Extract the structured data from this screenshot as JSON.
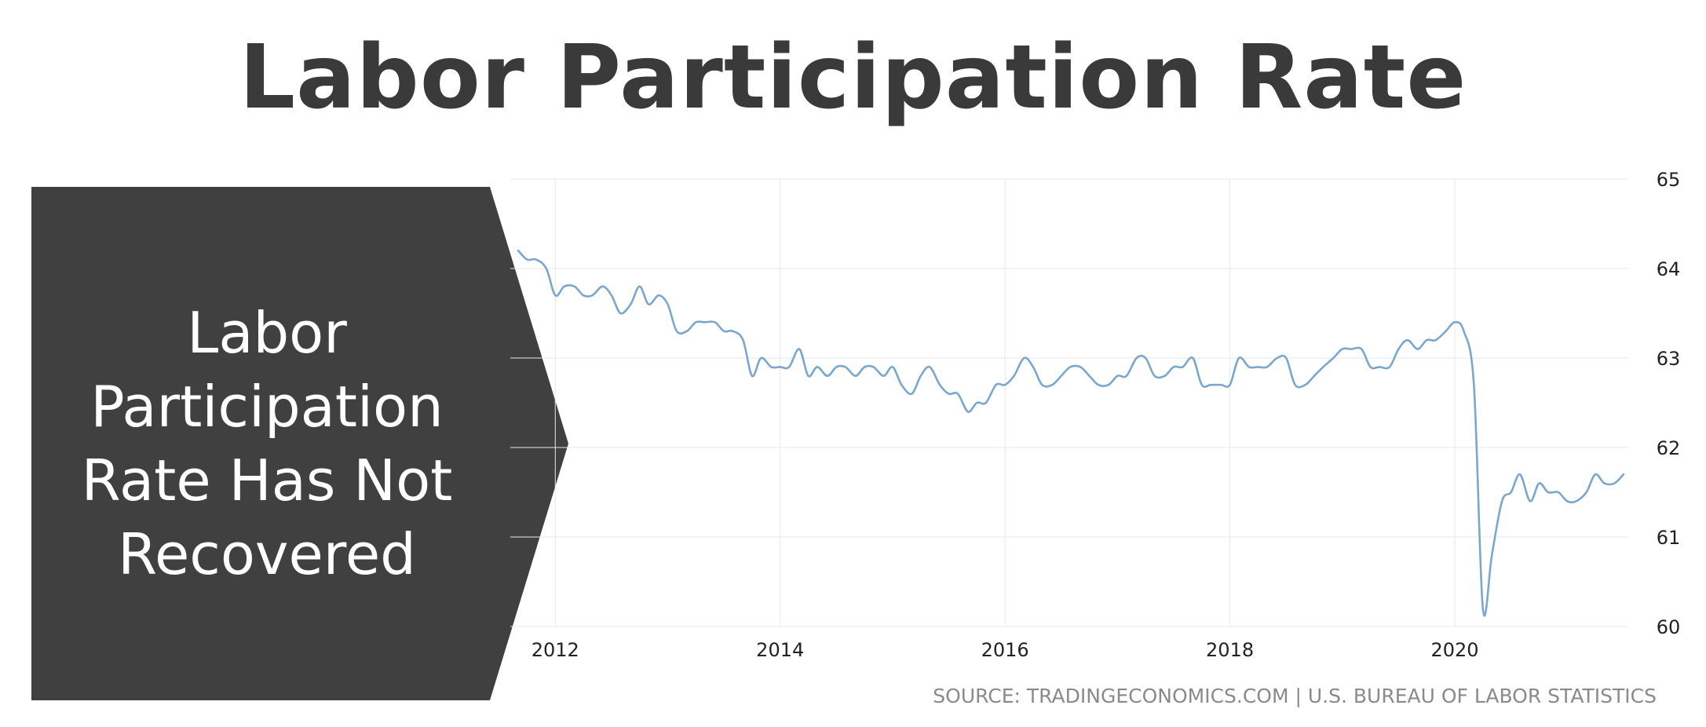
{
  "title": "Labor Participation Rate",
  "callout": {
    "text": "Labor Participation Rate Has Not Recovered",
    "fill": "#404040"
  },
  "source": "SOURCE: TRADINGECONOMICS.COM | U.S. BUREAU OF LABOR STATISTICS",
  "colors": {
    "line": "#7ba7cd",
    "grid": "#e8e8e8",
    "title": "#3a3a3a",
    "tick": "#222222"
  },
  "chart_data": {
    "type": "line",
    "title": "",
    "xlabel": "",
    "ylabel": "",
    "xlim": [
      2011.6,
      2021.55
    ],
    "ylim": [
      60,
      65
    ],
    "x_ticks": [
      2012,
      2014,
      2016,
      2018,
      2020
    ],
    "y_ticks": [
      60,
      61,
      62,
      63,
      64,
      65
    ],
    "y_axis_side": "right",
    "grid": true,
    "legend": "none",
    "series": [
      {
        "name": "",
        "x": [
          2011.67,
          2011.75,
          2011.83,
          2011.92,
          2012.0,
          2012.08,
          2012.17,
          2012.25,
          2012.33,
          2012.42,
          2012.5,
          2012.58,
          2012.67,
          2012.75,
          2012.83,
          2012.92,
          2013.0,
          2013.08,
          2013.17,
          2013.25,
          2013.33,
          2013.42,
          2013.5,
          2013.58,
          2013.67,
          2013.75,
          2013.83,
          2013.92,
          2014.0,
          2014.08,
          2014.17,
          2014.25,
          2014.33,
          2014.42,
          2014.5,
          2014.58,
          2014.67,
          2014.75,
          2014.83,
          2014.92,
          2015.0,
          2015.08,
          2015.17,
          2015.25,
          2015.33,
          2015.42,
          2015.5,
          2015.58,
          2015.67,
          2015.75,
          2015.83,
          2015.92,
          2016.0,
          2016.08,
          2016.17,
          2016.25,
          2016.33,
          2016.42,
          2016.5,
          2016.58,
          2016.67,
          2016.75,
          2016.83,
          2016.92,
          2017.0,
          2017.08,
          2017.17,
          2017.25,
          2017.33,
          2017.42,
          2017.5,
          2017.58,
          2017.67,
          2017.75,
          2017.83,
          2017.92,
          2018.0,
          2018.08,
          2018.17,
          2018.25,
          2018.33,
          2018.42,
          2018.5,
          2018.58,
          2018.67,
          2018.75,
          2018.83,
          2018.92,
          2019.0,
          2019.08,
          2019.17,
          2019.25,
          2019.33,
          2019.42,
          2019.5,
          2019.58,
          2019.67,
          2019.75,
          2019.83,
          2019.92,
          2020.0,
          2020.08,
          2020.17,
          2020.25,
          2020.33,
          2020.42,
          2020.5,
          2020.58,
          2020.67,
          2020.75,
          2020.83,
          2020.92,
          2021.0,
          2021.08,
          2021.17,
          2021.25,
          2021.33,
          2021.42,
          2021.5
        ],
        "values": [
          64.2,
          64.1,
          64.1,
          64.0,
          63.7,
          63.8,
          63.8,
          63.7,
          63.7,
          63.8,
          63.7,
          63.5,
          63.6,
          63.8,
          63.6,
          63.7,
          63.6,
          63.3,
          63.3,
          63.4,
          63.4,
          63.4,
          63.3,
          63.3,
          63.2,
          62.8,
          63.0,
          62.9,
          62.9,
          62.9,
          63.1,
          62.8,
          62.9,
          62.8,
          62.9,
          62.9,
          62.8,
          62.9,
          62.9,
          62.8,
          62.9,
          62.7,
          62.6,
          62.8,
          62.9,
          62.7,
          62.6,
          62.6,
          62.4,
          62.5,
          62.5,
          62.7,
          62.7,
          62.8,
          63.0,
          62.9,
          62.7,
          62.7,
          62.8,
          62.9,
          62.9,
          62.8,
          62.7,
          62.7,
          62.8,
          62.8,
          63.0,
          63.0,
          62.8,
          62.8,
          62.9,
          62.9,
          63.0,
          62.7,
          62.7,
          62.7,
          62.7,
          63.0,
          62.9,
          62.9,
          62.9,
          63.0,
          63.0,
          62.7,
          62.7,
          62.8,
          62.9,
          63.0,
          63.1,
          63.1,
          63.1,
          62.9,
          62.9,
          62.9,
          63.1,
          63.2,
          63.1,
          63.2,
          63.2,
          63.3,
          63.4,
          63.3,
          62.7,
          60.2,
          60.8,
          61.4,
          61.5,
          61.7,
          61.4,
          61.6,
          61.5,
          61.5,
          61.4,
          61.4,
          61.5,
          61.7,
          61.6,
          61.6,
          61.7
        ]
      }
    ]
  }
}
